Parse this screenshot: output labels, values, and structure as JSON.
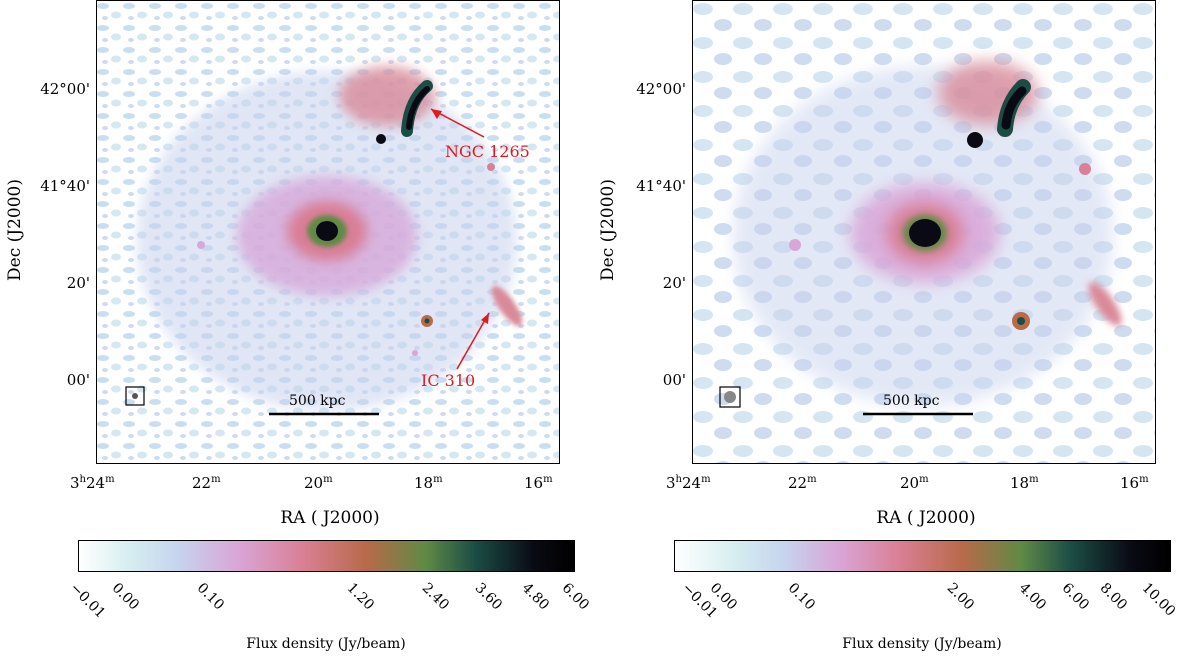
{
  "left": {
    "y_ticks": [
      "42°00'",
      "41°40'",
      "20'",
      "00'"
    ],
    "y_title": "Dec (J2000)",
    "x_ticks": [
      {
        "h": "3",
        "hs": "h",
        "m": "24",
        "ms": "m"
      },
      {
        "h": "",
        "hs": "",
        "m": "22",
        "ms": "m"
      },
      {
        "h": "",
        "hs": "",
        "m": "20",
        "ms": "m"
      },
      {
        "h": "",
        "hs": "",
        "m": "18",
        "ms": "m"
      },
      {
        "h": "",
        "hs": "",
        "m": "16",
        "ms": "m"
      }
    ],
    "x_title": "RA ( J2000)",
    "scale_bar": "500 kpc",
    "annotations": {
      "ngc": "NGC 1265",
      "ic": "IC 310"
    },
    "colorbar_ticks": [
      "−0.01",
      "0.00",
      "0.10",
      "1.20",
      "2.40",
      "3.60",
      "4.80",
      "6.00"
    ],
    "colorbar_title": "Flux density (Jy/beam)"
  },
  "right": {
    "y_ticks": [
      "42°00'",
      "41°40'",
      "20'",
      "00'"
    ],
    "y_title": "Dec (J2000)",
    "x_ticks": [
      {
        "h": "3",
        "hs": "h",
        "m": "24",
        "ms": "m"
      },
      {
        "h": "",
        "hs": "",
        "m": "22",
        "ms": "m"
      },
      {
        "h": "",
        "hs": "",
        "m": "20",
        "ms": "m"
      },
      {
        "h": "",
        "hs": "",
        "m": "18",
        "ms": "m"
      },
      {
        "h": "",
        "hs": "",
        "m": "16",
        "ms": "m"
      }
    ],
    "x_title": "RA ( J2000)",
    "scale_bar": "500 kpc",
    "colorbar_ticks": [
      "−0.01",
      "0.00",
      "0.10",
      "2.00",
      "4.00",
      "6.00",
      "8.00",
      "10.00"
    ],
    "colorbar_title": "Flux density (Jy/beam)"
  },
  "colors": {
    "cmap": [
      "#ffffff",
      "#d6eef0",
      "#c6d4ee",
      "#d9a6d8",
      "#d98096",
      "#b86a4a",
      "#5f8a45",
      "#1b4d45",
      "#0a0a14",
      "#000000"
    ],
    "annotation": "#e0191f"
  }
}
